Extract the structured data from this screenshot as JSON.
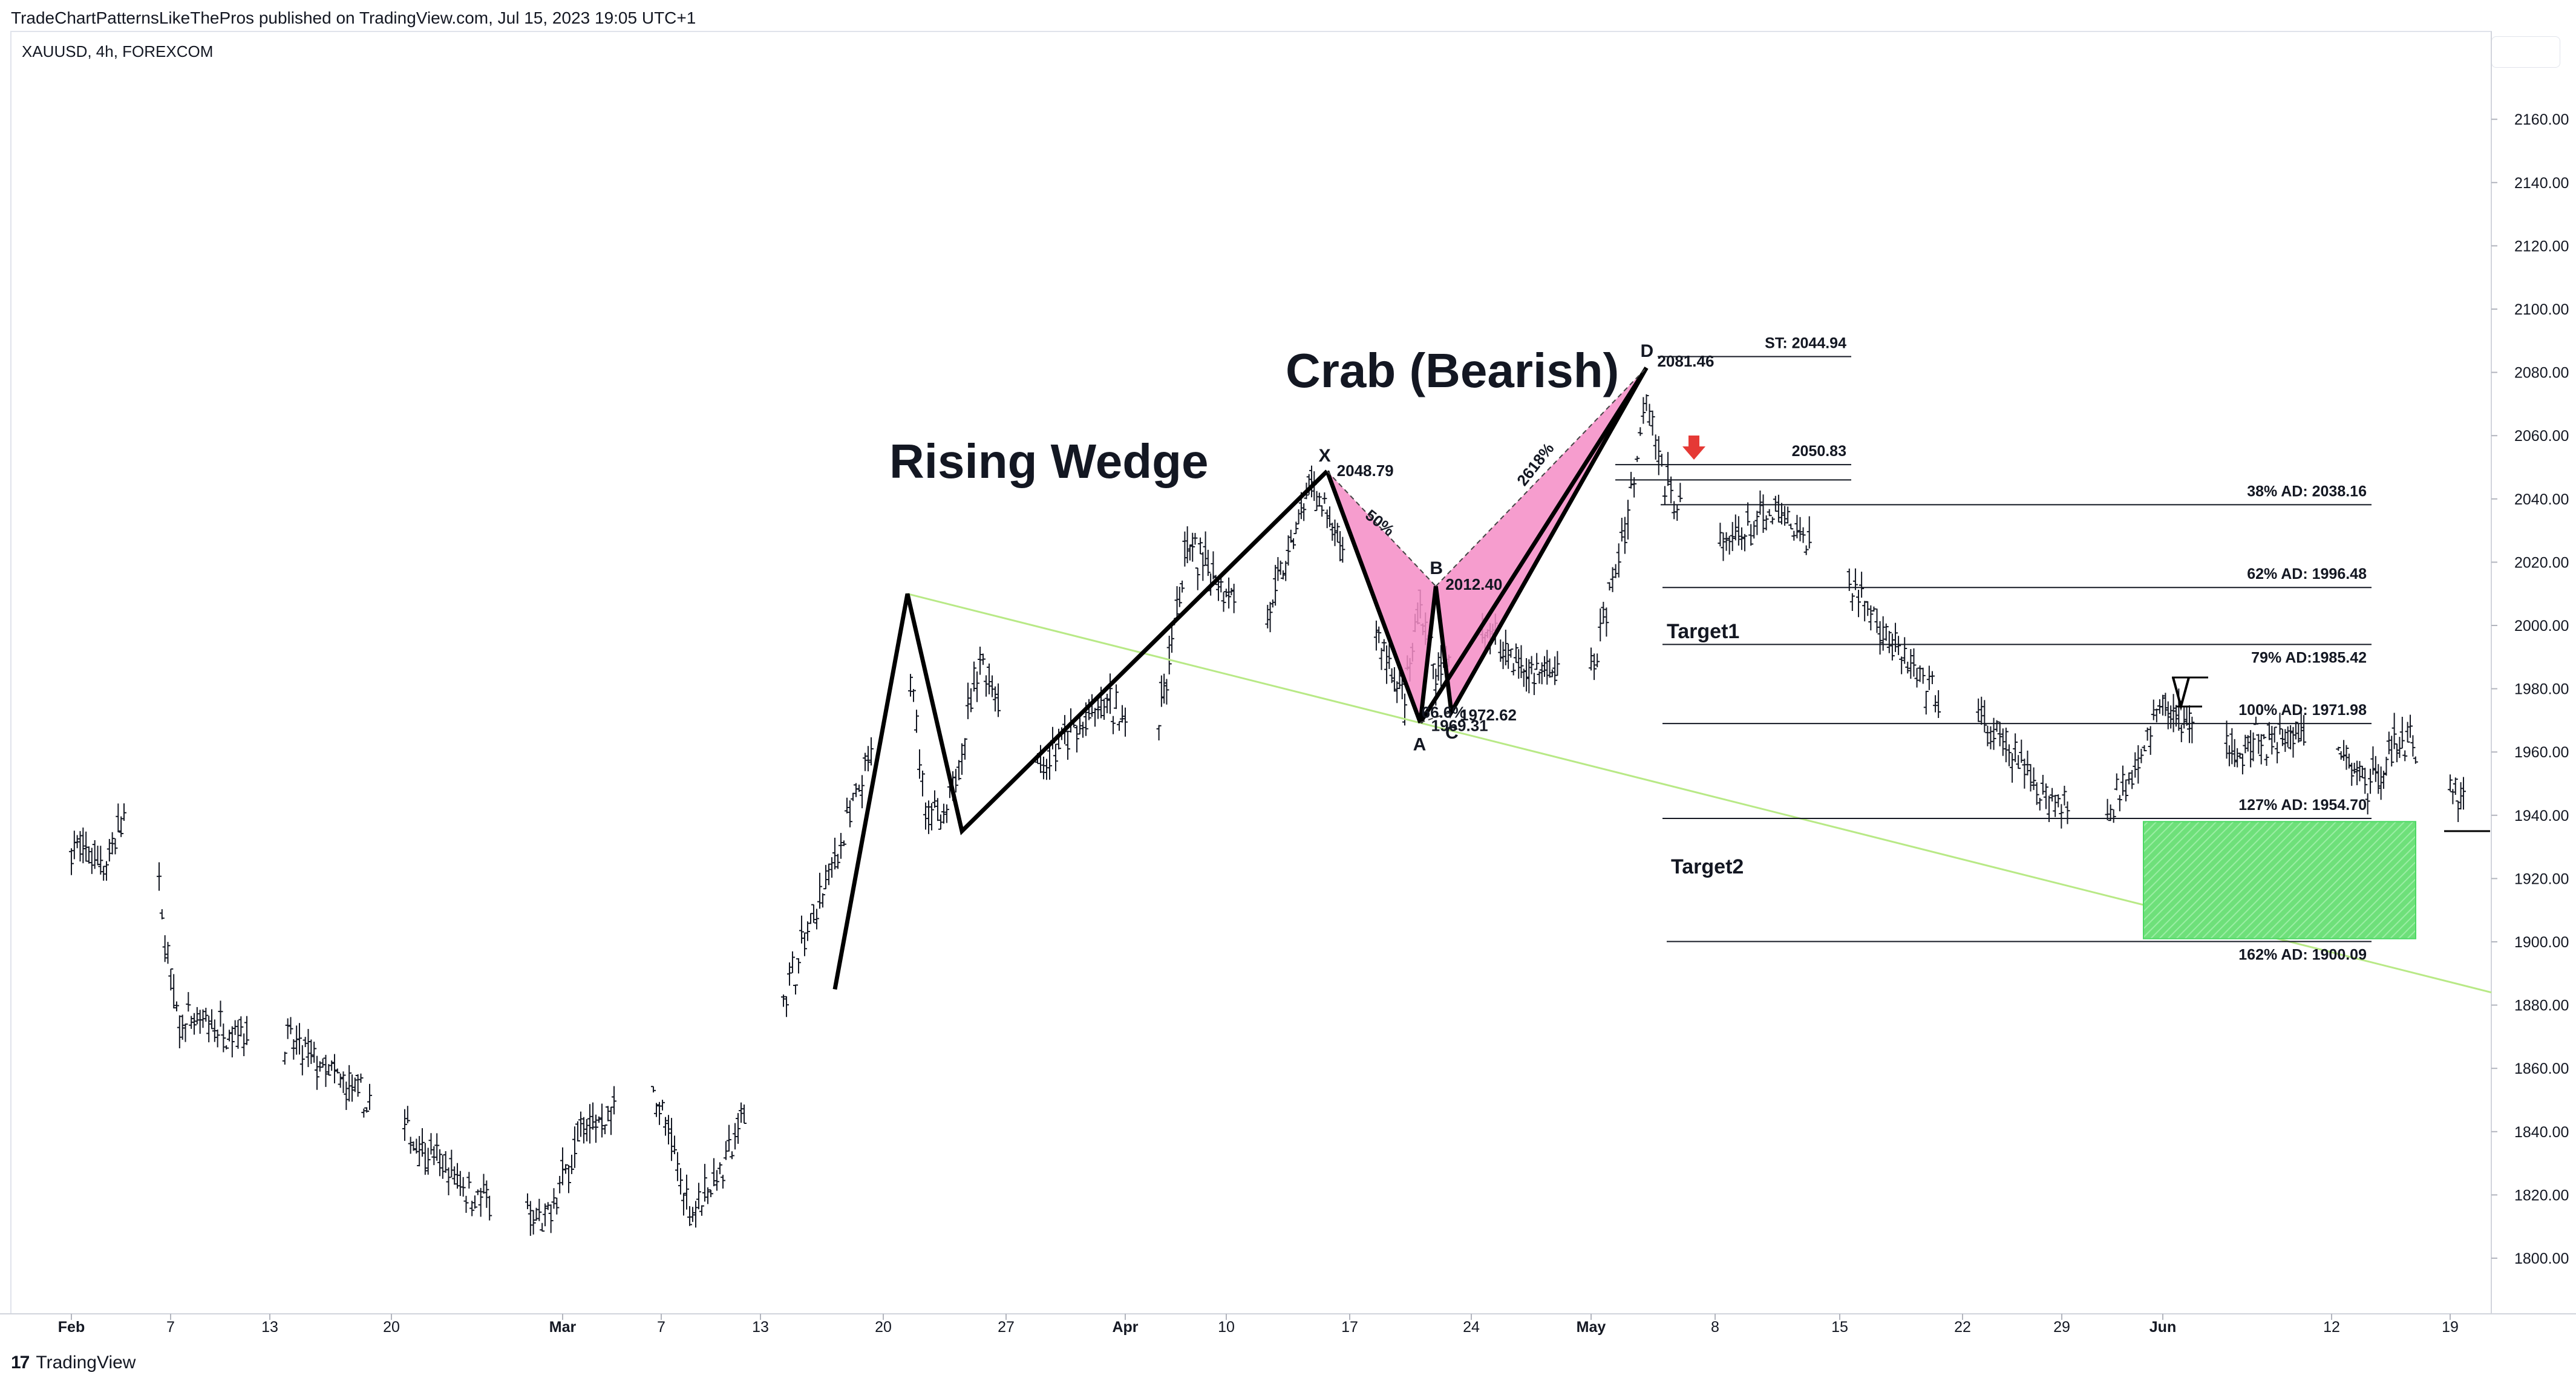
{
  "header": {
    "published": "TradeChartPatternsLikeThePros published on TradingView.com, Jul 15, 2023 19:05 UTC+1",
    "symbol": "XAUUSD, 4h, FOREXCOM"
  },
  "footer": {
    "logo": "17",
    "brand": "TradingView"
  },
  "chart_data": {
    "type": "candlestick",
    "ylim": [
      1790,
      2175
    ],
    "grid": false,
    "y_ticks": [
      "1800.00",
      "1820.00",
      "1840.00",
      "1860.00",
      "1880.00",
      "1900.00",
      "1920.00",
      "1940.00",
      "1960.00",
      "1980.00",
      "2000.00",
      "2020.00",
      "2040.00",
      "2060.00",
      "2080.00",
      "2100.00",
      "2120.00",
      "2140.00",
      "2160.00"
    ],
    "x_ticks": [
      {
        "label": "Feb",
        "bold": true
      },
      {
        "label": "7"
      },
      {
        "label": "13"
      },
      {
        "label": "20"
      },
      {
        "label": "Mar",
        "bold": true
      },
      {
        "label": "7"
      },
      {
        "label": "13"
      },
      {
        "label": "20"
      },
      {
        "label": "27"
      },
      {
        "label": "Apr",
        "bold": true
      },
      {
        "label": "10"
      },
      {
        "label": "17"
      },
      {
        "label": "24"
      },
      {
        "label": "May",
        "bold": true
      },
      {
        "label": "8"
      },
      {
        "label": "15"
      },
      {
        "label": "22"
      },
      {
        "label": "29"
      },
      {
        "label": "Jun",
        "bold": true
      },
      {
        "label": "12"
      },
      {
        "label": "19"
      }
    ],
    "price_path": [
      [
        "Feb 1",
        1930
      ],
      [
        "Feb 3",
        1925
      ],
      [
        "Feb 5",
        1955
      ],
      [
        "Feb 7",
        1875
      ],
      [
        "Feb 13",
        1870
      ],
      [
        "Feb 20",
        1840
      ],
      [
        "Feb 24",
        1820
      ],
      [
        "Feb 28",
        1810
      ],
      [
        "Mar 2",
        1840
      ],
      [
        "Mar 6",
        1855
      ],
      [
        "Mar 8",
        1815
      ],
      [
        "Mar 10",
        1830
      ],
      [
        "Mar 13",
        1880
      ],
      [
        "Mar 15",
        1910
      ],
      [
        "Mar 20",
        1990
      ],
      [
        "Mar 21",
        1945
      ],
      [
        "Mar 22",
        1935
      ],
      [
        "Mar 24",
        1990
      ],
      [
        "Mar 27",
        1955
      ],
      [
        "Mar 31",
        1975
      ],
      [
        "Apr 3",
        1965
      ],
      [
        "Apr 5",
        2025
      ],
      [
        "Apr 10",
        2000
      ],
      [
        "Apr 13",
        2045
      ],
      [
        "Apr 17",
        2000
      ],
      [
        "Apr 19",
        1975
      ],
      [
        "Apr 20",
        2008
      ],
      [
        "Apr 21",
        1983
      ],
      [
        "Apr 24",
        2000
      ],
      [
        "Apr 27",
        1985
      ],
      [
        "May 1",
        1985
      ],
      [
        "May 3",
        2035
      ],
      [
        "May 4",
        2075
      ],
      [
        "May 5",
        2045
      ],
      [
        "May 8",
        2025
      ],
      [
        "May 11",
        2035
      ],
      [
        "May 15",
        2015
      ],
      [
        "May 19",
        1980
      ],
      [
        "May 22",
        1970
      ],
      [
        "May 26",
        1945
      ],
      [
        "May 29",
        1940
      ],
      [
        "Jun 1",
        1975
      ],
      [
        "Jun 5",
        1960
      ],
      [
        "Jun 9",
        1965
      ],
      [
        "Jun 12",
        1960
      ],
      [
        "Jun 14",
        1950
      ],
      [
        "Jun 16",
        1965
      ],
      [
        "Jun 20",
        1945
      ]
    ],
    "rising_wedge": {
      "label": "Rising Wedge",
      "points": [
        [
          "Mar 16",
          1885
        ],
        [
          "Mar 20",
          2010
        ],
        [
          "Mar 23",
          1935
        ],
        [
          "Apr 14",
          2048.79
        ]
      ]
    },
    "trendline_color": "#b8e986",
    "crab": {
      "label": "Crab (Bearish)",
      "fill": "#f48cc6",
      "X": {
        "label": "X",
        "price": 2048.79,
        "text": "2048.79"
      },
      "A": {
        "label": "A",
        "price": 1969.31,
        "text": "1969.31"
      },
      "B": {
        "label": "B",
        "price": 2012.4,
        "text": "2012.40"
      },
      "C": {
        "label": "C",
        "price": 1972.62,
        "text": "1972.62"
      },
      "D": {
        "label": "D",
        "price": 2081.46,
        "text": "2081.46"
      },
      "ratio_xb": "50%",
      "ratio_ac": "66.6%",
      "ratio_bd": "2618%"
    },
    "levels": [
      {
        "text": "ST: 2044.94",
        "price": 2085
      },
      {
        "text": "2050.83",
        "price": 2050.83
      },
      {
        "text": "38% AD: 2038.16",
        "price": 2038.16
      },
      {
        "text": "62% AD: 1996.48",
        "price": 2012
      },
      {
        "text": "79% AD:1985.42",
        "price": 1994
      },
      {
        "text": "100% AD: 1971.98",
        "price": 1969
      },
      {
        "text": "127% AD: 1954.70",
        "price": 1939
      },
      {
        "text": "162% AD: 1900.09",
        "price": 1900.09
      }
    ],
    "targets": [
      {
        "label": "Target1",
        "price": 2000
      },
      {
        "label": "Target2",
        "price": 1925
      }
    ],
    "target_zone": {
      "top": 1938,
      "bottom": 1901,
      "color": "#4cd964"
    },
    "sell_arrow_color": "#e53935"
  }
}
